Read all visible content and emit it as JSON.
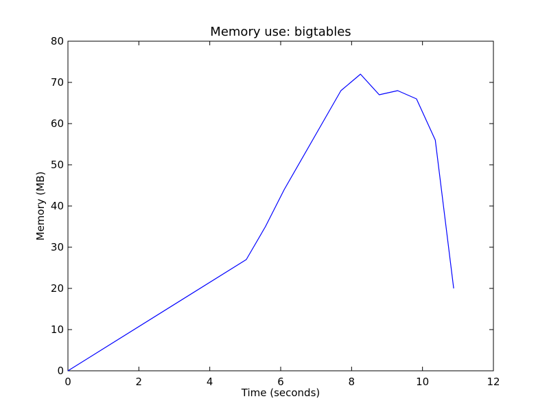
{
  "chart_data": {
    "type": "line",
    "title": "Memory use: bigtables",
    "xlabel": "Time (seconds)",
    "ylabel": "Memory (MB)",
    "xlim": [
      0,
      12
    ],
    "ylim": [
      0,
      80
    ],
    "x_ticks": [
      "0",
      "2",
      "4",
      "6",
      "8",
      "10",
      "12"
    ],
    "y_ticks": [
      "0",
      "10",
      "20",
      "30",
      "40",
      "50",
      "60",
      "70",
      "80"
    ],
    "grid": false,
    "series": [
      {
        "color": "#0000ff",
        "points": [
          {
            "x": 0.0,
            "y": 0
          },
          {
            "x": 5.03,
            "y": 27
          },
          {
            "x": 5.57,
            "y": 35
          },
          {
            "x": 6.1,
            "y": 44
          },
          {
            "x": 7.7,
            "y": 68
          },
          {
            "x": 8.25,
            "y": 72
          },
          {
            "x": 8.78,
            "y": 67
          },
          {
            "x": 9.3,
            "y": 68
          },
          {
            "x": 9.83,
            "y": 66
          },
          {
            "x": 10.36,
            "y": 56
          },
          {
            "x": 10.88,
            "y": 20
          }
        ]
      }
    ]
  }
}
